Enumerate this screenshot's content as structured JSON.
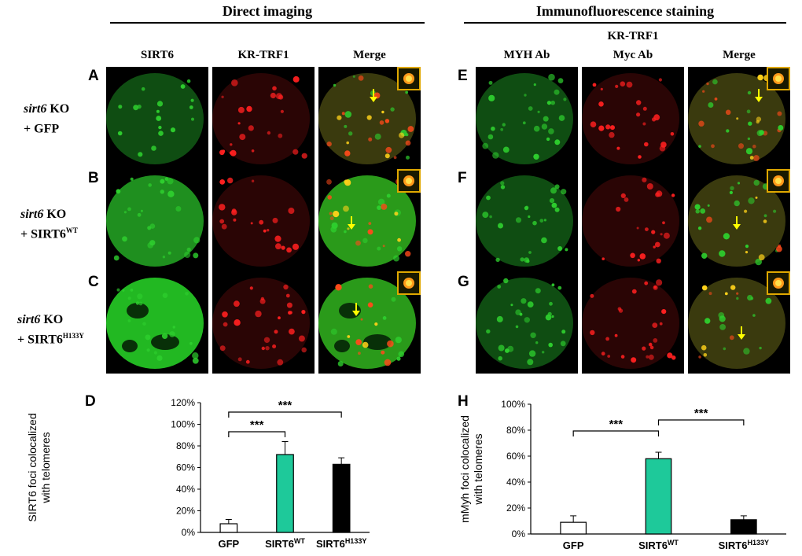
{
  "headers": {
    "left": "Direct imaging",
    "right": "Immunofluorescence staining",
    "right_sub": "KR-TRF1"
  },
  "columns_left": [
    "SIRT6",
    "KR-TRF1",
    "Merge"
  ],
  "columns_right": [
    "MYH Ab",
    "Myc Ab",
    "Merge"
  ],
  "rows": [
    {
      "left_letter": "A",
      "right_letter": "E",
      "cond_gene": "sirt6",
      "cond_ko": " KO",
      "cond_line2": "+ GFP",
      "cond_sup": ""
    },
    {
      "left_letter": "B",
      "right_letter": "F",
      "cond_gene": "sirt6",
      "cond_ko": " KO",
      "cond_line2": "+ SIRT6",
      "cond_sup": "WT"
    },
    {
      "left_letter": "C",
      "right_letter": "G",
      "cond_gene": "sirt6",
      "cond_ko": " KO",
      "cond_line2": "+ SIRT6",
      "cond_sup": "H133Y"
    }
  ],
  "colors": {
    "green": "#2ecf2e",
    "red": "#ff2020",
    "teal": "#1ec99a",
    "black": "#000000",
    "inset_border": "#e0a800",
    "arrow": "#ffff00"
  },
  "chart_data": [
    {
      "panel": "D",
      "type": "bar",
      "categories": [
        "GFP",
        "SIRT6",
        "SIRT6"
      ],
      "category_sup": [
        "",
        "WT",
        "H133Y"
      ],
      "values": [
        8,
        72,
        63
      ],
      "errors": [
        4,
        12,
        6
      ],
      "bar_colors": [
        "#ffffff",
        "#1ec99a",
        "#000000"
      ],
      "ylabel_line1": "SIRT6 foci colocalized",
      "ylabel_line2": "with telomeres",
      "ylim": [
        0,
        120
      ],
      "yticks": [
        "0%",
        "20%",
        "40%",
        "60%",
        "80%",
        "100%",
        "120%"
      ],
      "significance": [
        {
          "from": 0,
          "to": 1,
          "label": "***"
        },
        {
          "from": 0,
          "to": 2,
          "label": "***"
        }
      ]
    },
    {
      "panel": "H",
      "type": "bar",
      "categories": [
        "GFP",
        "SIRT6",
        "SIRT6"
      ],
      "category_sup": [
        "",
        "WT",
        "H133Y"
      ],
      "values": [
        9,
        58,
        11
      ],
      "errors": [
        5,
        5,
        3
      ],
      "bar_colors": [
        "#ffffff",
        "#1ec99a",
        "#000000"
      ],
      "ylabel_line1": "mMyh foci colocalized",
      "ylabel_line2": "with telomeres",
      "ylim": [
        0,
        100
      ],
      "yticks": [
        "0%",
        "20%",
        "40%",
        "60%",
        "80%",
        "100%"
      ],
      "significance": [
        {
          "from": 0,
          "to": 1,
          "label": "***"
        },
        {
          "from": 1,
          "to": 2,
          "label": "***"
        }
      ]
    }
  ]
}
